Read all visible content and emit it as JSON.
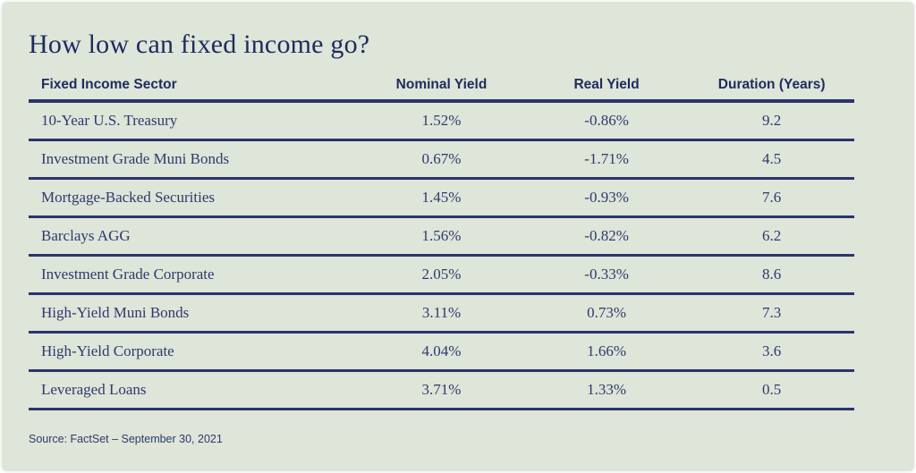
{
  "page": {
    "title": "How low can fixed income go?"
  },
  "table": {
    "columns": [
      "Fixed Income Sector",
      "Nominal Yield",
      "Real Yield",
      "Duration (Years)"
    ],
    "rows": [
      {
        "sector": "10-Year U.S. Treasury",
        "nominal_yield": "1.52%",
        "real_yield": "-0.86%",
        "duration": "9.2"
      },
      {
        "sector": "Investment Grade Muni Bonds",
        "nominal_yield": "0.67%",
        "real_yield": "-1.71%",
        "duration": "4.5"
      },
      {
        "sector": "Mortgage-Backed Securities",
        "nominal_yield": "1.45%",
        "real_yield": "-0.93%",
        "duration": "7.6"
      },
      {
        "sector": "Barclays AGG",
        "nominal_yield": "1.56%",
        "real_yield": "-0.82%",
        "duration": "6.2"
      },
      {
        "sector": "Investment Grade Corporate",
        "nominal_yield": "2.05%",
        "real_yield": "-0.33%",
        "duration": "8.6"
      },
      {
        "sector": "High-Yield Muni Bonds",
        "nominal_yield": "3.11%",
        "real_yield": "0.73%",
        "duration": "7.3"
      },
      {
        "sector": "High-Yield Corporate",
        "nominal_yield": "4.04%",
        "real_yield": "1.66%",
        "duration": "3.6"
      },
      {
        "sector": "Leveraged Loans",
        "nominal_yield": "3.71%",
        "real_yield": "1.33%",
        "duration": "0.5"
      }
    ]
  },
  "footer": {
    "source": "Source: FactSet – September 30, 2021"
  },
  "colors": {
    "background": "#dee5d9",
    "navy": "#2a356b",
    "title_text": "#1e2b5f",
    "body_text": "#2e3a6c"
  },
  "chart_data": {
    "type": "table",
    "title": "How low can fixed income go?",
    "categories": [
      "10-Year U.S. Treasury",
      "Investment Grade Muni Bonds",
      "Mortgage-Backed Securities",
      "Barclays AGG",
      "Investment Grade Corporate",
      "High-Yield Muni Bonds",
      "High-Yield Corporate",
      "Leveraged Loans"
    ],
    "series": [
      {
        "name": "Nominal Yield",
        "unit": "%",
        "values": [
          1.52,
          0.67,
          1.45,
          1.56,
          2.05,
          3.11,
          4.04,
          3.71
        ]
      },
      {
        "name": "Real Yield",
        "unit": "%",
        "values": [
          -0.86,
          -1.71,
          -0.93,
          -0.82,
          -0.33,
          0.73,
          1.66,
          1.33
        ]
      },
      {
        "name": "Duration (Years)",
        "unit": "years",
        "values": [
          9.2,
          4.5,
          7.6,
          6.2,
          8.6,
          7.3,
          3.6,
          0.5
        ]
      }
    ],
    "source": "Source: FactSet – September 30, 2021"
  }
}
